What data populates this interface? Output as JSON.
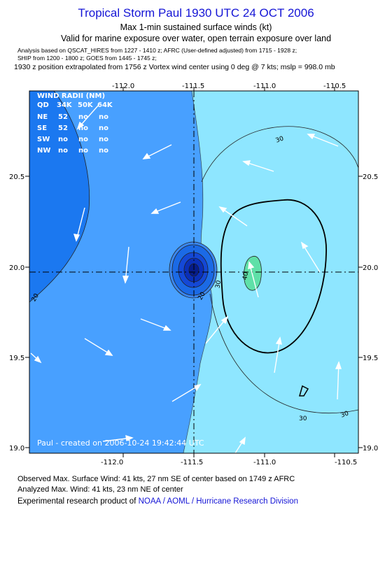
{
  "header": {
    "title": "Tropical Storm Paul 1930 UTC 24 OCT 2006",
    "subtitle1": "Max 1-min sustained surface winds (kt)",
    "subtitle2": "Valid for marine exposure over water, open terrain exposure over land",
    "sources1": "Analysis based on  QSCAT_HIRES from 1227 - 1410 z;  AFRC (User-defined adjusted) from 1715 - 1928 z;",
    "sources2": "SHIP from 1200 - 1800 z;  GOES from 1445 - 1745 z;",
    "position_note": "1930 z position extrapolated from 1756 z Vortex wind center using 0 deg @ 7 kts; mslp = 998.0 mb"
  },
  "map": {
    "lon_ticks": [
      "-112.0",
      "-111.5",
      "-111.0",
      "-110.5"
    ],
    "lat_ticks": [
      "20.5",
      "20.0",
      "19.5",
      "19.0"
    ],
    "contour_labels": [
      "20",
      "30",
      "30",
      "30",
      "30",
      "40",
      "20"
    ],
    "credit": "Paul - created on 2006-10-24 19:42:44 UTC",
    "center": {
      "lon": -111.5,
      "lat": 19.97
    },
    "colors": {
      "band_lt20": "#1b78f0",
      "band_20_30": "#48a0ff",
      "band_30_40": "#8ee6ff",
      "band_40_50": "#5fe0a8",
      "band_core": "#1448d6",
      "band_core2": "#0a2fb8",
      "band_eye": "#061c8a"
    }
  },
  "wind_radii": {
    "title": "WIND RADII (NM)",
    "header": [
      "QD",
      "34K",
      "50K",
      "64K"
    ],
    "rows": [
      [
        "NE",
        "52",
        "no",
        "no"
      ],
      [
        "SE",
        "52",
        "no",
        "no"
      ],
      [
        "SW",
        "no",
        "no",
        "no"
      ],
      [
        "NW",
        "no",
        "no",
        "no"
      ]
    ]
  },
  "footer": {
    "observed": "Observed Max. Surface Wind: 41 kts, 27 nm SE of center based on 1749 z AFRC",
    "analyzed": "Analyzed Max. Wind: 41 kts, 23 nm NE of center",
    "research_prefix": "Experimental research product of",
    "research_org": "NOAA / AOML / Hurricane Research Division"
  }
}
